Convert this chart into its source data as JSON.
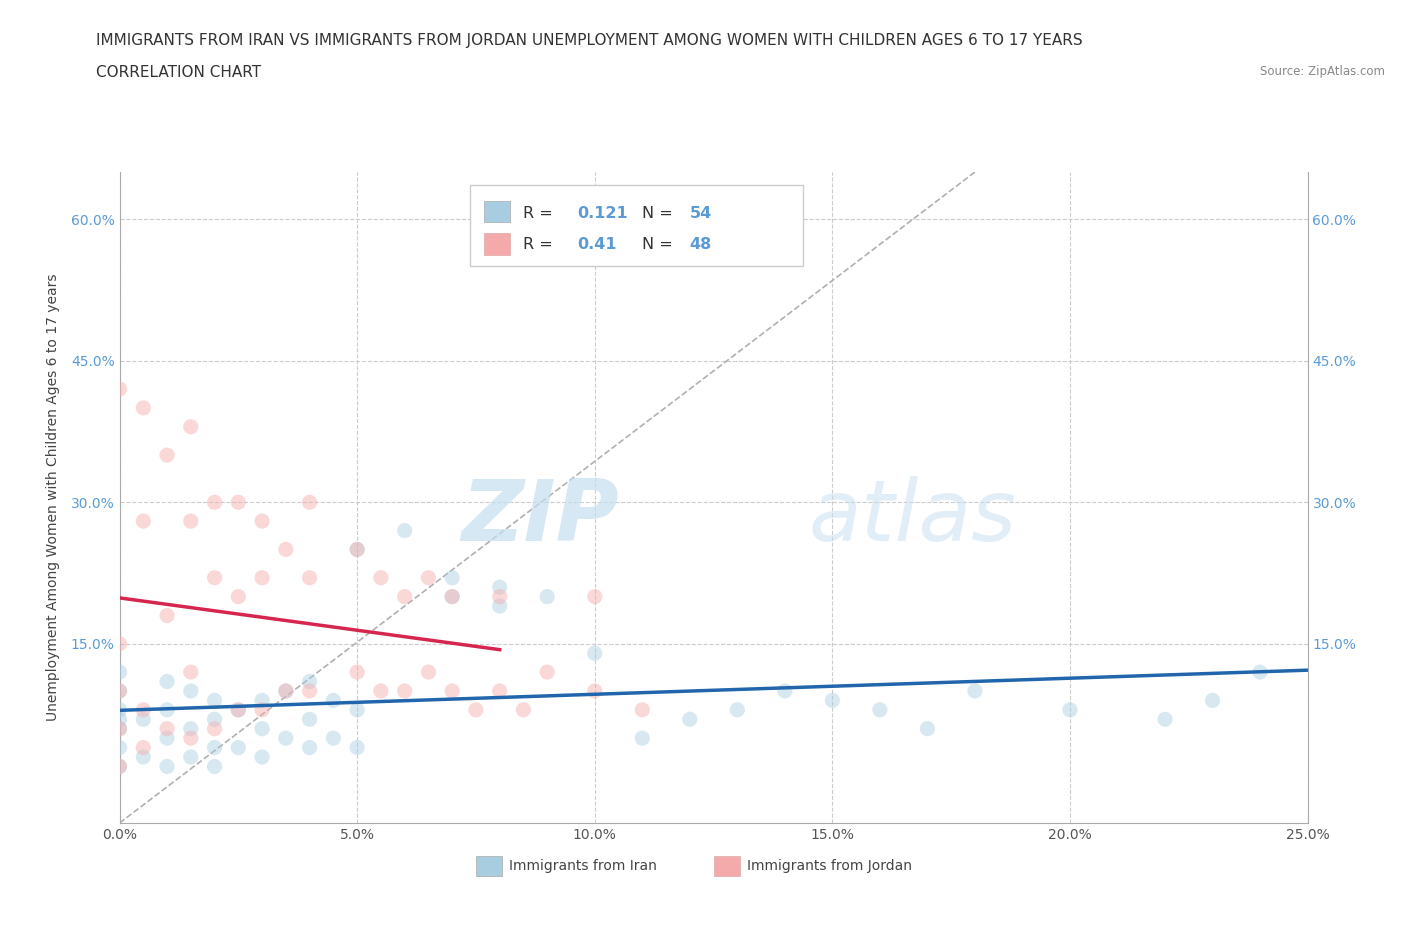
{
  "title_line1": "IMMIGRANTS FROM IRAN VS IMMIGRANTS FROM JORDAN UNEMPLOYMENT AMONG WOMEN WITH CHILDREN AGES 6 TO 17 YEARS",
  "title_line2": "CORRELATION CHART",
  "source": "Source: ZipAtlas.com",
  "ylabel": "Unemployment Among Women with Children Ages 6 to 17 years",
  "xlim": [
    0.0,
    0.25
  ],
  "ylim": [
    -0.04,
    0.65
  ],
  "xtick_labels": [
    "0.0%",
    "5.0%",
    "10.0%",
    "15.0%",
    "20.0%",
    "25.0%"
  ],
  "xtick_vals": [
    0.0,
    0.05,
    0.1,
    0.15,
    0.2,
    0.25
  ],
  "ytick_vals": [
    0.15,
    0.3,
    0.45,
    0.6
  ],
  "ytick_labels": [
    "15.0%",
    "30.0%",
    "45.0%",
    "60.0%"
  ],
  "iran_color": "#a8cce0",
  "jordan_color": "#f4aaaa",
  "iran_line_color": "#2166ac",
  "jordan_line_color": "#d6264e",
  "iran_R": 0.121,
  "iran_N": 54,
  "jordan_R": 0.41,
  "jordan_N": 48,
  "watermark_zip": "ZIP",
  "watermark_atlas": "atlas",
  "legend_label_iran": "Immigrants from Iran",
  "legend_label_jordan": "Immigrants from Jordan",
  "iran_scatter_x": [
    0.0,
    0.0,
    0.0,
    0.0,
    0.0,
    0.0,
    0.0,
    0.005,
    0.005,
    0.01,
    0.01,
    0.01,
    0.01,
    0.015,
    0.015,
    0.015,
    0.02,
    0.02,
    0.02,
    0.02,
    0.025,
    0.025,
    0.03,
    0.03,
    0.03,
    0.035,
    0.035,
    0.04,
    0.04,
    0.04,
    0.045,
    0.045,
    0.05,
    0.05,
    0.05,
    0.06,
    0.07,
    0.07,
    0.08,
    0.08,
    0.09,
    0.1,
    0.11,
    0.12,
    0.13,
    0.14,
    0.15,
    0.16,
    0.17,
    0.18,
    0.2,
    0.22,
    0.23,
    0.24
  ],
  "iran_scatter_y": [
    0.02,
    0.04,
    0.06,
    0.07,
    0.08,
    0.1,
    0.12,
    0.03,
    0.07,
    0.02,
    0.05,
    0.08,
    0.11,
    0.03,
    0.06,
    0.1,
    0.02,
    0.04,
    0.07,
    0.09,
    0.04,
    0.08,
    0.03,
    0.06,
    0.09,
    0.05,
    0.1,
    0.04,
    0.07,
    0.11,
    0.05,
    0.09,
    0.04,
    0.08,
    0.25,
    0.27,
    0.2,
    0.22,
    0.19,
    0.21,
    0.2,
    0.14,
    0.05,
    0.07,
    0.08,
    0.1,
    0.09,
    0.08,
    0.06,
    0.1,
    0.08,
    0.07,
    0.09,
    0.12
  ],
  "jordan_scatter_x": [
    0.0,
    0.0,
    0.0,
    0.0,
    0.0,
    0.005,
    0.005,
    0.005,
    0.005,
    0.01,
    0.01,
    0.01,
    0.015,
    0.015,
    0.015,
    0.015,
    0.02,
    0.02,
    0.02,
    0.025,
    0.025,
    0.025,
    0.03,
    0.03,
    0.03,
    0.035,
    0.035,
    0.04,
    0.04,
    0.04,
    0.05,
    0.05,
    0.055,
    0.055,
    0.06,
    0.06,
    0.065,
    0.065,
    0.07,
    0.07,
    0.075,
    0.08,
    0.08,
    0.085,
    0.09,
    0.1,
    0.1,
    0.11
  ],
  "jordan_scatter_y": [
    0.02,
    0.06,
    0.1,
    0.15,
    0.42,
    0.04,
    0.08,
    0.28,
    0.4,
    0.06,
    0.18,
    0.35,
    0.05,
    0.12,
    0.28,
    0.38,
    0.06,
    0.22,
    0.3,
    0.08,
    0.2,
    0.3,
    0.08,
    0.22,
    0.28,
    0.1,
    0.25,
    0.1,
    0.22,
    0.3,
    0.12,
    0.25,
    0.1,
    0.22,
    0.1,
    0.2,
    0.12,
    0.22,
    0.1,
    0.2,
    0.08,
    0.1,
    0.2,
    0.08,
    0.12,
    0.1,
    0.2,
    0.08
  ],
  "background_color": "#ffffff",
  "grid_color": "#cccccc",
  "title_fontsize": 11,
  "axis_label_fontsize": 10,
  "tick_fontsize": 10,
  "scatter_size": 120,
  "scatter_alpha": 0.45,
  "trendline_dash_color": "#b0b0b0"
}
